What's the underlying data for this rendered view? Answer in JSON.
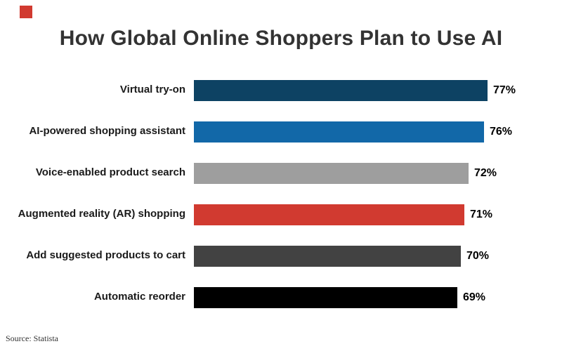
{
  "page": {
    "title": "How Global Online Shoppers Plan to Use AI",
    "source": "Source: Statista",
    "brand_color": "#d13a30"
  },
  "chart_data": {
    "type": "bar",
    "orientation": "horizontal",
    "title": "How Global Online Shoppers Plan to Use AI",
    "categories": [
      "Virtual try-on",
      "AI-powered shopping assistant",
      "Voice-enabled product search",
      "Augmented reality (AR) shopping",
      "Add suggested products to cart",
      "Automatic reorder"
    ],
    "values": [
      77,
      76,
      72,
      71,
      70,
      69
    ],
    "value_labels": [
      "77%",
      "76%",
      "72%",
      "71%",
      "70%",
      "69%"
    ],
    "bar_colors": [
      "#0d4263",
      "#1268a8",
      "#9e9e9e",
      "#d13a30",
      "#424242",
      "#000000"
    ],
    "unit": "%",
    "xlim": [
      0,
      80
    ],
    "grid": false,
    "legend": "none",
    "source": "Source: Statista"
  }
}
